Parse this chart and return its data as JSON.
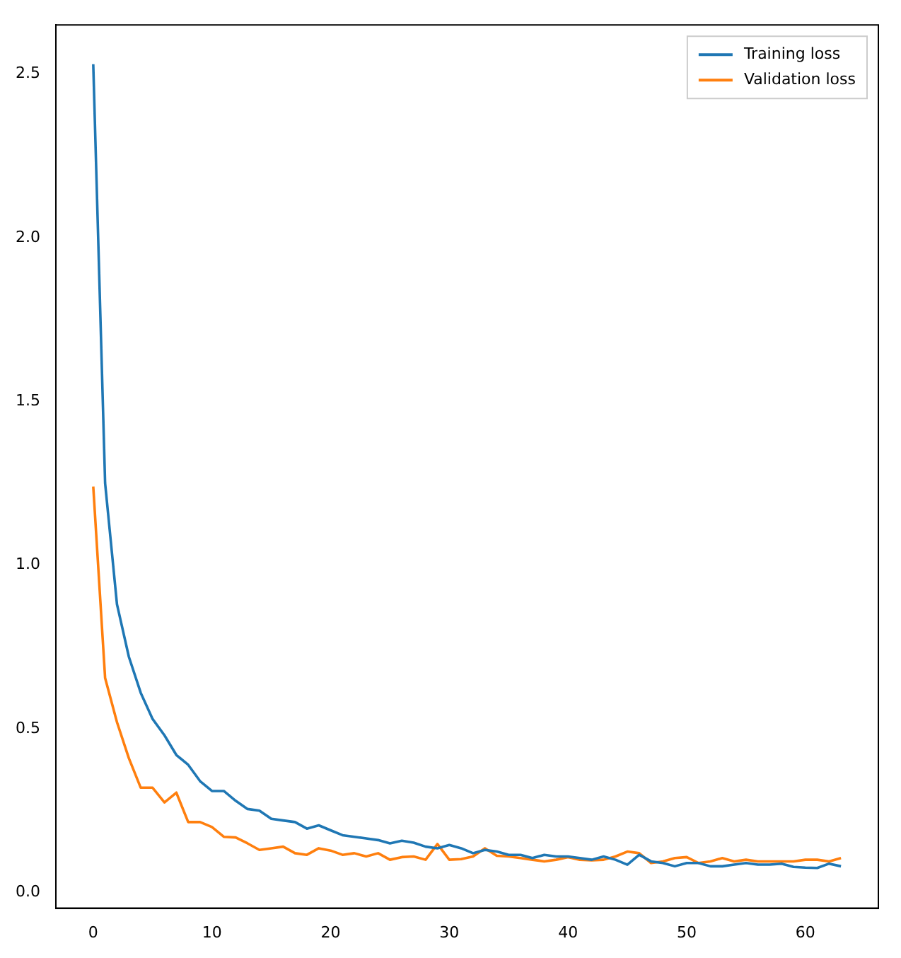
{
  "chart_data": {
    "type": "line",
    "x": [
      0,
      1,
      2,
      3,
      4,
      5,
      6,
      7,
      8,
      9,
      10,
      11,
      12,
      13,
      14,
      15,
      16,
      17,
      18,
      19,
      20,
      21,
      22,
      23,
      24,
      25,
      26,
      27,
      28,
      29,
      30,
      31,
      32,
      33,
      34,
      35,
      36,
      37,
      38,
      39,
      40,
      41,
      42,
      43,
      44,
      45,
      46,
      47,
      48,
      49,
      50,
      51,
      52,
      53,
      54,
      55,
      56,
      57,
      58,
      59,
      60,
      61,
      62,
      63
    ],
    "series": [
      {
        "name": "Training loss",
        "color": "#1f77b4",
        "values": [
          2.53,
          1.25,
          0.88,
          0.72,
          0.61,
          0.53,
          0.48,
          0.42,
          0.39,
          0.34,
          0.31,
          0.31,
          0.28,
          0.255,
          0.25,
          0.225,
          0.22,
          0.215,
          0.195,
          0.205,
          0.19,
          0.175,
          0.17,
          0.165,
          0.16,
          0.15,
          0.158,
          0.152,
          0.14,
          0.135,
          0.145,
          0.135,
          0.12,
          0.13,
          0.125,
          0.115,
          0.115,
          0.105,
          0.115,
          0.11,
          0.11,
          0.105,
          0.1,
          0.11,
          0.1,
          0.085,
          0.115,
          0.095,
          0.09,
          0.08,
          0.09,
          0.09,
          0.08,
          0.08,
          0.085,
          0.09,
          0.085,
          0.085,
          0.088,
          0.078,
          0.076,
          0.075,
          0.088,
          0.08
        ]
      },
      {
        "name": "Validation loss",
        "color": "#ff7f0e",
        "values": [
          1.24,
          0.655,
          0.52,
          0.41,
          0.32,
          0.32,
          0.275,
          0.305,
          0.215,
          0.215,
          0.2,
          0.17,
          0.168,
          0.15,
          0.13,
          0.135,
          0.14,
          0.12,
          0.115,
          0.135,
          0.128,
          0.115,
          0.12,
          0.11,
          0.12,
          0.1,
          0.108,
          0.11,
          0.1,
          0.148,
          0.1,
          0.102,
          0.11,
          0.135,
          0.112,
          0.11,
          0.105,
          0.1,
          0.095,
          0.1,
          0.108,
          0.1,
          0.098,
          0.1,
          0.11,
          0.125,
          0.12,
          0.09,
          0.095,
          0.105,
          0.108,
          0.09,
          0.095,
          0.105,
          0.095,
          0.1,
          0.095,
          0.095,
          0.095,
          0.095,
          0.1,
          0.1,
          0.095,
          0.105
        ]
      }
    ],
    "xlim": [
      -3.15,
      66.15
    ],
    "xticks": [
      0,
      10,
      20,
      30,
      40,
      50,
      60
    ],
    "ylim": [
      -0.048,
      2.65
    ],
    "yticks": [
      {
        "value": 0,
        "label": "0.0"
      },
      {
        "value": 0.5,
        "label": "0.5"
      },
      {
        "value": 1,
        "label": "1.0"
      },
      {
        "value": 1.5,
        "label": "1.5"
      },
      {
        "value": 2,
        "label": "2.0"
      },
      {
        "value": 2.5,
        "label": "2.5"
      }
    ],
    "grid": false,
    "legend": "top right",
    "line_style": "solid",
    "marker": "none"
  }
}
